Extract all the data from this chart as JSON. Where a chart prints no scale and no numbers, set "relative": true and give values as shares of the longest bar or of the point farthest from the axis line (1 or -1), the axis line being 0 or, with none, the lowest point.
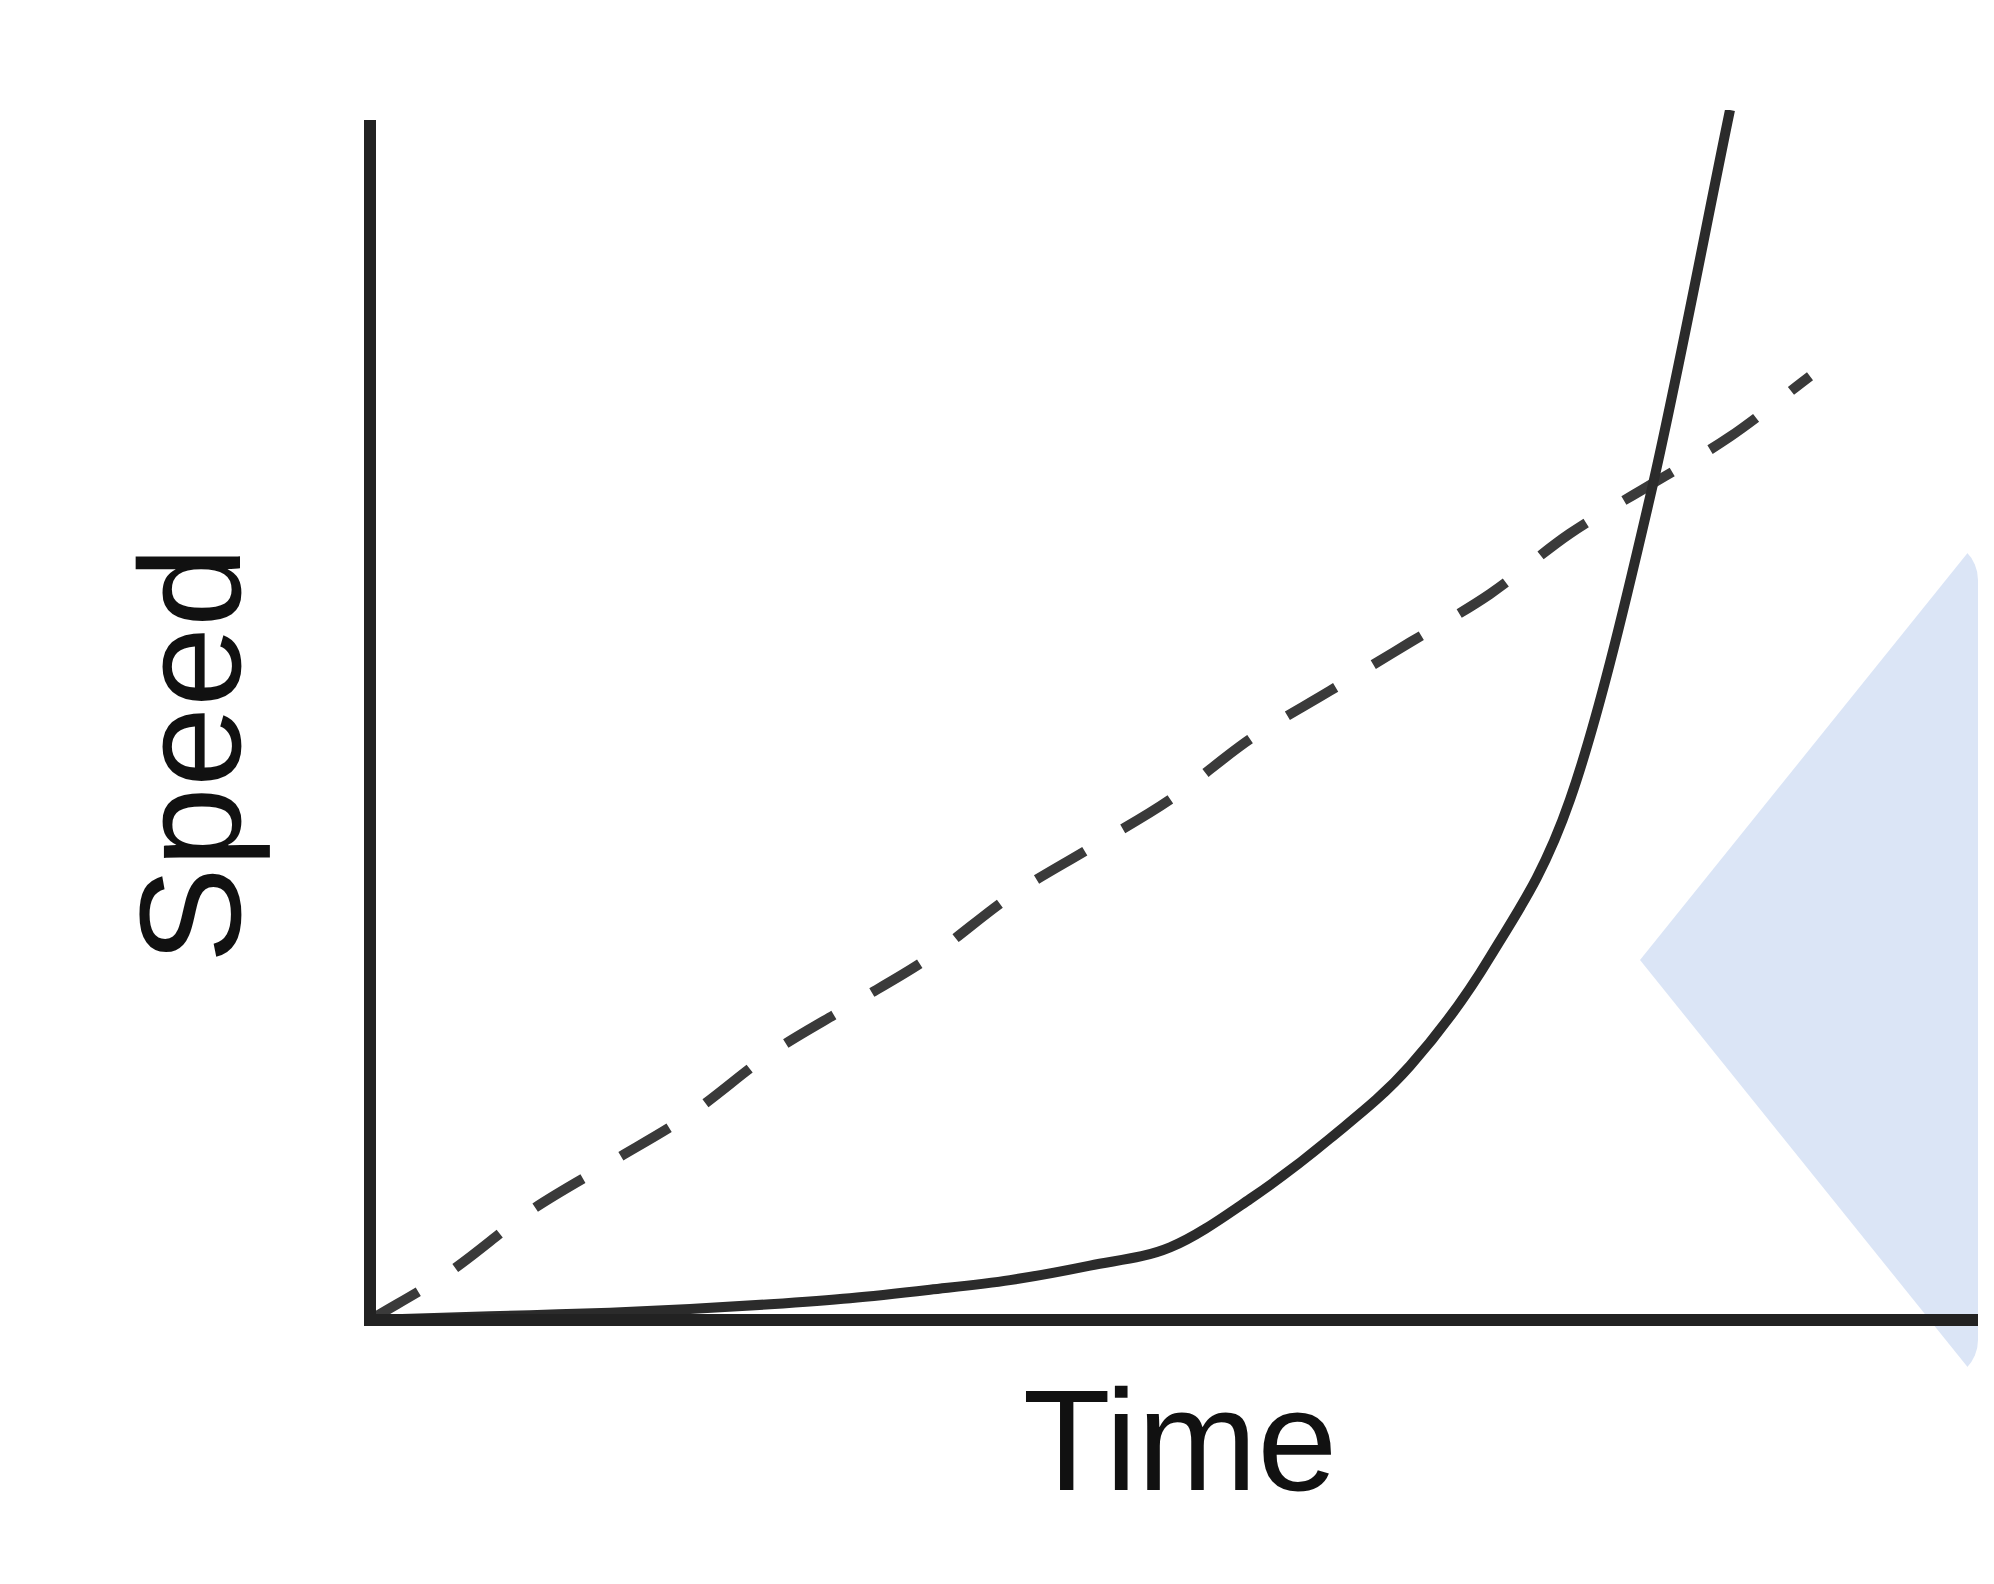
{
  "chart_data": {
    "type": "line",
    "relative": true,
    "xlabel": "Time",
    "ylabel": "Speed",
    "categories": [
      null,
      null,
      null,
      null,
      null,
      null,
      null,
      null,
      null,
      null,
      null,
      null,
      null,
      null,
      null,
      null,
      null,
      null,
      null,
      null,
      null
    ],
    "series": [
      {
        "color": "#2b2b2b",
        "line_style": "solid",
        "values": [
          0,
          0.002,
          0.004,
          0.006,
          0.009,
          0.013,
          0.018,
          0.025,
          0.033,
          0.045,
          0.06,
          0.1,
          0.15,
          0.21,
          0.3,
          0.43,
          0.68,
          1.0,
          null,
          null,
          null
        ]
      },
      {
        "color": "#3a3a3a",
        "line_style": "dashed",
        "values": [
          0,
          0.04,
          0.09,
          0.13,
          0.17,
          0.22,
          0.26,
          0.3,
          0.35,
          0.39,
          0.43,
          0.48,
          0.52,
          0.56,
          0.6,
          0.65,
          0.69,
          0.73,
          0.78,
          null,
          null
        ]
      }
    ],
    "marker": "none",
    "legend": false
  }
}
